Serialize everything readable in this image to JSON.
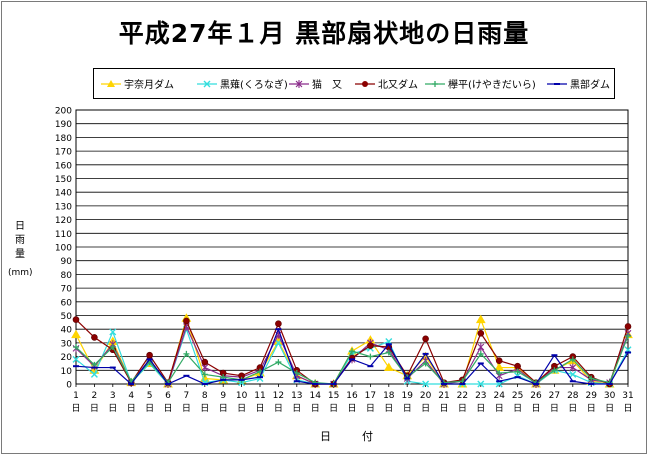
{
  "chart_data": {
    "type": "line",
    "title": "平成27年１月 黒部扇状地の日雨量",
    "xlabel": "日　付",
    "ylabel_chars": [
      "日",
      "雨",
      "量"
    ],
    "yunit": "(mm)",
    "ylim": [
      0,
      200
    ],
    "ytick_step": 10,
    "grid": true,
    "legend_position": "top",
    "x": [
      1,
      2,
      3,
      4,
      5,
      6,
      7,
      8,
      9,
      10,
      11,
      12,
      13,
      14,
      15,
      16,
      17,
      18,
      19,
      20,
      21,
      22,
      23,
      24,
      25,
      26,
      27,
      28,
      29,
      30,
      31
    ],
    "x_suffix": "日",
    "series": [
      {
        "name": "宇奈月ダム",
        "color": "#ffd400",
        "marker": "triangle",
        "values": [
          36,
          10,
          31,
          1,
          15,
          0,
          48,
          4,
          3,
          3,
          8,
          31,
          6,
          0,
          0,
          24,
          32,
          12,
          6,
          20,
          0,
          0,
          47,
          12,
          12,
          0,
          10,
          17,
          2,
          0,
          36
        ]
      },
      {
        "name": "黒薙(くろなぎ)",
        "color": "#33dddd",
        "marker": "x",
        "values": [
          18,
          7,
          38,
          1,
          15,
          0,
          40,
          1,
          3,
          1,
          4,
          30,
          3,
          0,
          0,
          22,
          26,
          31,
          2,
          0,
          0,
          0,
          0,
          0,
          6,
          0,
          10,
          7,
          1,
          0,
          25
        ]
      },
      {
        "name": "猫　又",
        "color": "#8a2a8a",
        "marker": "star",
        "values": [
          26,
          13,
          29,
          1,
          18,
          0,
          42,
          12,
          6,
          5,
          10,
          36,
          6,
          0,
          0,
          18,
          30,
          25,
          4,
          17,
          0,
          2,
          27,
          6,
          11,
          0,
          12,
          12,
          3,
          1,
          37
        ]
      },
      {
        "name": "北又ダム",
        "color": "#8b0000",
        "marker": "circle",
        "values": [
          47,
          34,
          25,
          1,
          21,
          1,
          46,
          16,
          8,
          6,
          12,
          44,
          10,
          0,
          0,
          19,
          28,
          27,
          6,
          33,
          1,
          3,
          37,
          17,
          13,
          1,
          13,
          20,
          5,
          0,
          42
        ]
      },
      {
        "name": "欅平(けやきだいら)",
        "color": "#33aa66",
        "marker": "plus",
        "values": [
          27,
          14,
          27,
          2,
          16,
          1,
          22,
          7,
          5,
          3,
          9,
          16,
          8,
          1,
          0,
          24,
          20,
          23,
          5,
          15,
          1,
          2,
          22,
          8,
          9,
          1,
          10,
          18,
          4,
          1,
          35
        ]
      },
      {
        "name": "黒部ダム",
        "color": "#0000aa",
        "marker": "dash",
        "values": [
          13,
          12,
          12,
          0,
          18,
          0,
          6,
          0,
          3,
          3,
          5,
          40,
          2,
          0,
          0,
          18,
          13,
          29,
          4,
          22,
          0,
          0,
          15,
          2,
          5,
          0,
          21,
          2,
          0,
          0,
          23
        ]
      }
    ]
  }
}
